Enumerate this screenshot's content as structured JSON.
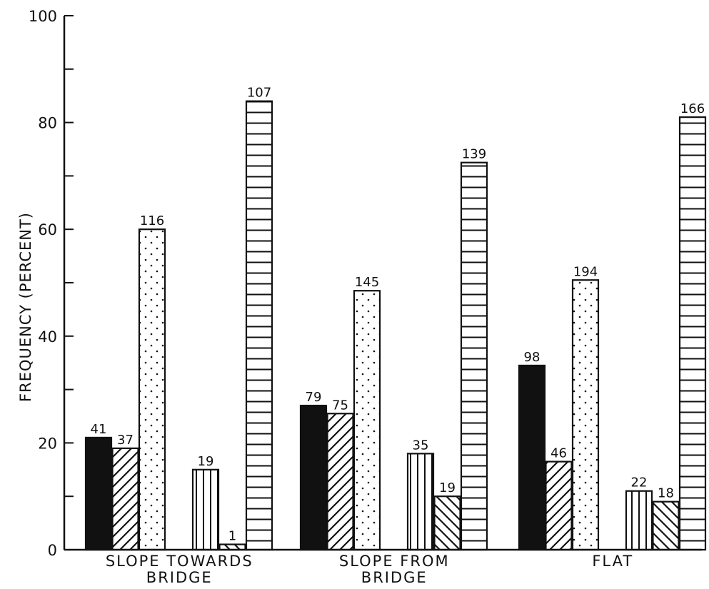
{
  "chart_data": {
    "type": "bar",
    "title": "",
    "xlabel": "",
    "ylabel": "FREQUENCY (PERCENT)",
    "ylim": [
      0,
      100
    ],
    "yticks": [
      0,
      20,
      40,
      60,
      80,
      100
    ],
    "grid": false,
    "legend": "none",
    "groups": [
      {
        "label_line1": "SLOPE TOWARDS",
        "label_line2": "BRIDGE",
        "bars": [
          {
            "pattern": "solid",
            "value": 21,
            "label": "41"
          },
          {
            "pattern": "diagonal-up",
            "value": 19,
            "label": "37"
          },
          {
            "pattern": "dotted",
            "value": 60,
            "label": "116"
          },
          {
            "pattern": "none",
            "value": 0,
            "label": ""
          },
          {
            "pattern": "vertical-lines",
            "value": 15,
            "label": "19"
          },
          {
            "pattern": "diagonal-down",
            "value": 1,
            "label": "1"
          },
          {
            "pattern": "horizontal-lines",
            "value": 84,
            "label": "107"
          }
        ]
      },
      {
        "label_line1": "SLOPE FROM",
        "label_line2": "BRIDGE",
        "bars": [
          {
            "pattern": "solid",
            "value": 27,
            "label": "79"
          },
          {
            "pattern": "diagonal-up",
            "value": 25.5,
            "label": "75"
          },
          {
            "pattern": "dotted",
            "value": 48.5,
            "label": "145"
          },
          {
            "pattern": "none",
            "value": 0,
            "label": ""
          },
          {
            "pattern": "vertical-lines",
            "value": 18,
            "label": "35"
          },
          {
            "pattern": "diagonal-down",
            "value": 10,
            "label": "19"
          },
          {
            "pattern": "horizontal-lines",
            "value": 72.5,
            "label": "139"
          }
        ]
      },
      {
        "label_line1": "FLAT",
        "label_line2": "",
        "bars": [
          {
            "pattern": "solid",
            "value": 34.5,
            "label": "98"
          },
          {
            "pattern": "diagonal-up",
            "value": 16.5,
            "label": "46"
          },
          {
            "pattern": "dotted",
            "value": 50.5,
            "label": "194"
          },
          {
            "pattern": "none",
            "value": 0,
            "label": ""
          },
          {
            "pattern": "vertical-lines",
            "value": 11,
            "label": "22"
          },
          {
            "pattern": "diagonal-down",
            "value": 9,
            "label": "18"
          },
          {
            "pattern": "horizontal-lines",
            "value": 81,
            "label": "166"
          }
        ]
      }
    ]
  }
}
